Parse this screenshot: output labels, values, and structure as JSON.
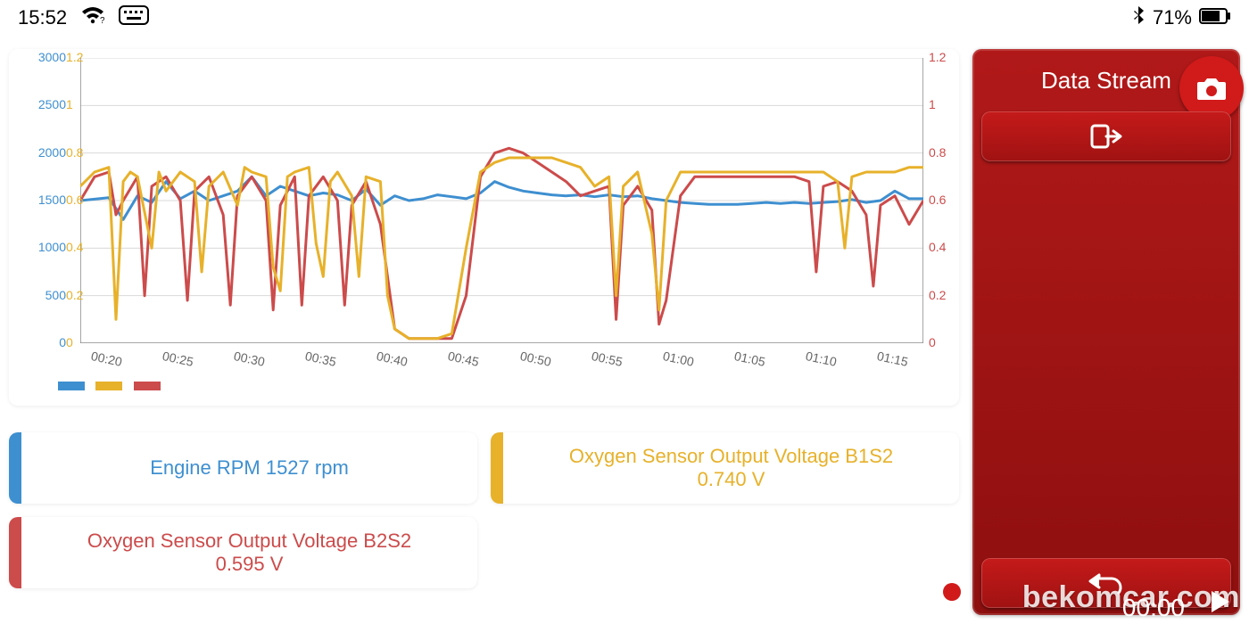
{
  "status": {
    "time": "15:52",
    "battery_pct": "71%"
  },
  "side": {
    "title": "Data Stream",
    "timer": "00:00"
  },
  "params": {
    "blue": {
      "label": "Engine RPM 1527 rpm"
    },
    "yellow": {
      "label1": "Oxygen Sensor Output Voltage B1S2",
      "label2": "0.740 V"
    },
    "red": {
      "label1": "Oxygen Sensor Output Voltage B2S2",
      "label2": "0.595 V"
    }
  },
  "watermark": "bekomcar.com",
  "chart": {
    "type": "line",
    "colors": {
      "blue": "#3e8fd0",
      "yellow": "#e7b12a",
      "red": "#cc4b4b",
      "grid": "#d9d9d9",
      "bg": "#ffffff",
      "axis": "#888888"
    },
    "line_width": 3,
    "left_axis_blue": {
      "min": 0,
      "max": 3000,
      "ticks": [
        0,
        500,
        1000,
        1500,
        2000,
        2500,
        3000
      ]
    },
    "left_axis_yellow": {
      "min": 0,
      "max": 1.2,
      "ticks": [
        0,
        0.2,
        0.4,
        0.6,
        0.8,
        1,
        1.2
      ]
    },
    "right_axis_red": {
      "min": 0,
      "max": 1.2,
      "ticks": [
        0,
        0.2,
        0.4,
        0.6,
        0.8,
        1,
        1.2
      ]
    },
    "x_ticks": [
      "00:20",
      "00:25",
      "00:30",
      "00:35",
      "00:40",
      "00:45",
      "00:50",
      "00:55",
      "01:00",
      "01:05",
      "01:10",
      "01:15"
    ],
    "x_range": [
      18,
      77
    ],
    "series_blue_rpm": [
      [
        18,
        1500
      ],
      [
        20,
        1530
      ],
      [
        21,
        1300
      ],
      [
        22,
        1550
      ],
      [
        23,
        1480
      ],
      [
        24,
        1700
      ],
      [
        25,
        1520
      ],
      [
        26,
        1600
      ],
      [
        27,
        1500
      ],
      [
        28,
        1550
      ],
      [
        29,
        1600
      ],
      [
        30,
        1750
      ],
      [
        31,
        1550
      ],
      [
        32,
        1650
      ],
      [
        33,
        1600
      ],
      [
        34,
        1550
      ],
      [
        35,
        1580
      ],
      [
        36,
        1560
      ],
      [
        37,
        1500
      ],
      [
        38,
        1620
      ],
      [
        39,
        1450
      ],
      [
        40,
        1550
      ],
      [
        41,
        1500
      ],
      [
        42,
        1520
      ],
      [
        43,
        1560
      ],
      [
        44,
        1540
      ],
      [
        45,
        1520
      ],
      [
        46,
        1580
      ],
      [
        47,
        1700
      ],
      [
        48,
        1640
      ],
      [
        49,
        1600
      ],
      [
        50,
        1580
      ],
      [
        51,
        1560
      ],
      [
        52,
        1550
      ],
      [
        53,
        1560
      ],
      [
        54,
        1540
      ],
      [
        55,
        1560
      ],
      [
        56,
        1540
      ],
      [
        57,
        1550
      ],
      [
        58,
        1520
      ],
      [
        59,
        1500
      ],
      [
        60,
        1480
      ],
      [
        61,
        1470
      ],
      [
        62,
        1460
      ],
      [
        63,
        1460
      ],
      [
        64,
        1460
      ],
      [
        65,
        1470
      ],
      [
        66,
        1480
      ],
      [
        67,
        1470
      ],
      [
        68,
        1480
      ],
      [
        69,
        1470
      ],
      [
        70,
        1480
      ],
      [
        71,
        1490
      ],
      [
        72,
        1510
      ],
      [
        73,
        1480
      ],
      [
        74,
        1500
      ],
      [
        75,
        1600
      ],
      [
        76,
        1520
      ],
      [
        77,
        1520
      ]
    ],
    "series_yellow_v": [
      [
        18,
        0.66
      ],
      [
        19,
        0.72
      ],
      [
        20,
        0.74
      ],
      [
        20.5,
        0.1
      ],
      [
        21,
        0.68
      ],
      [
        21.5,
        0.72
      ],
      [
        22,
        0.7
      ],
      [
        23,
        0.4
      ],
      [
        23.5,
        0.72
      ],
      [
        24,
        0.64
      ],
      [
        25,
        0.72
      ],
      [
        26,
        0.68
      ],
      [
        26.5,
        0.3
      ],
      [
        27,
        0.66
      ],
      [
        28,
        0.72
      ],
      [
        29,
        0.58
      ],
      [
        29.5,
        0.74
      ],
      [
        30,
        0.72
      ],
      [
        31,
        0.7
      ],
      [
        31.5,
        0.32
      ],
      [
        32,
        0.22
      ],
      [
        32.5,
        0.7
      ],
      [
        33,
        0.72
      ],
      [
        34,
        0.74
      ],
      [
        34.5,
        0.42
      ],
      [
        35,
        0.28
      ],
      [
        35.5,
        0.68
      ],
      [
        36,
        0.72
      ],
      [
        37,
        0.62
      ],
      [
        37.5,
        0.28
      ],
      [
        38,
        0.7
      ],
      [
        39,
        0.68
      ],
      [
        39.5,
        0.2
      ],
      [
        40,
        0.06
      ],
      [
        41,
        0.02
      ],
      [
        42,
        0.02
      ],
      [
        43,
        0.02
      ],
      [
        44,
        0.04
      ],
      [
        45,
        0.4
      ],
      [
        46,
        0.72
      ],
      [
        47,
        0.76
      ],
      [
        48,
        0.78
      ],
      [
        49,
        0.78
      ],
      [
        50,
        0.78
      ],
      [
        51,
        0.78
      ],
      [
        52,
        0.76
      ],
      [
        53,
        0.74
      ],
      [
        54,
        0.66
      ],
      [
        55,
        0.7
      ],
      [
        55.5,
        0.2
      ],
      [
        56,
        0.66
      ],
      [
        57,
        0.72
      ],
      [
        58,
        0.46
      ],
      [
        58.5,
        0.14
      ],
      [
        59,
        0.6
      ],
      [
        60,
        0.72
      ],
      [
        61,
        0.72
      ],
      [
        62,
        0.72
      ],
      [
        63,
        0.72
      ],
      [
        64,
        0.72
      ],
      [
        65,
        0.72
      ],
      [
        66,
        0.72
      ],
      [
        67,
        0.72
      ],
      [
        68,
        0.72
      ],
      [
        69,
        0.72
      ],
      [
        70,
        0.72
      ],
      [
        71,
        0.68
      ],
      [
        71.5,
        0.4
      ],
      [
        72,
        0.7
      ],
      [
        73,
        0.72
      ],
      [
        74,
        0.72
      ],
      [
        75,
        0.72
      ],
      [
        76,
        0.74
      ],
      [
        77,
        0.74
      ]
    ],
    "series_red_v": [
      [
        18,
        0.6
      ],
      [
        19,
        0.7
      ],
      [
        20,
        0.72
      ],
      [
        20.5,
        0.54
      ],
      [
        21,
        0.6
      ],
      [
        22,
        0.7
      ],
      [
        22.5,
        0.2
      ],
      [
        23,
        0.66
      ],
      [
        24,
        0.7
      ],
      [
        25,
        0.6
      ],
      [
        25.5,
        0.18
      ],
      [
        26,
        0.64
      ],
      [
        27,
        0.7
      ],
      [
        28,
        0.54
      ],
      [
        28.5,
        0.16
      ],
      [
        29,
        0.62
      ],
      [
        30,
        0.7
      ],
      [
        31,
        0.6
      ],
      [
        31.5,
        0.14
      ],
      [
        32,
        0.58
      ],
      [
        33,
        0.7
      ],
      [
        33.5,
        0.16
      ],
      [
        34,
        0.62
      ],
      [
        35,
        0.7
      ],
      [
        36,
        0.6
      ],
      [
        36.5,
        0.16
      ],
      [
        37,
        0.58
      ],
      [
        38,
        0.68
      ],
      [
        39,
        0.5
      ],
      [
        40,
        0.06
      ],
      [
        41,
        0.02
      ],
      [
        42,
        0.02
      ],
      [
        43,
        0.02
      ],
      [
        44,
        0.02
      ],
      [
        45,
        0.2
      ],
      [
        46,
        0.7
      ],
      [
        47,
        0.8
      ],
      [
        48,
        0.82
      ],
      [
        49,
        0.8
      ],
      [
        50,
        0.76
      ],
      [
        51,
        0.72
      ],
      [
        52,
        0.68
      ],
      [
        53,
        0.62
      ],
      [
        54,
        0.64
      ],
      [
        55,
        0.66
      ],
      [
        55.5,
        0.1
      ],
      [
        56,
        0.58
      ],
      [
        57,
        0.66
      ],
      [
        58,
        0.56
      ],
      [
        58.5,
        0.08
      ],
      [
        59,
        0.18
      ],
      [
        60,
        0.62
      ],
      [
        61,
        0.7
      ],
      [
        62,
        0.7
      ],
      [
        63,
        0.7
      ],
      [
        64,
        0.7
      ],
      [
        65,
        0.7
      ],
      [
        66,
        0.7
      ],
      [
        67,
        0.7
      ],
      [
        68,
        0.7
      ],
      [
        69,
        0.68
      ],
      [
        69.5,
        0.3
      ],
      [
        70,
        0.66
      ],
      [
        71,
        0.68
      ],
      [
        72,
        0.64
      ],
      [
        73,
        0.54
      ],
      [
        73.5,
        0.24
      ],
      [
        74,
        0.58
      ],
      [
        75,
        0.62
      ],
      [
        76,
        0.5
      ],
      [
        77,
        0.6
      ]
    ]
  }
}
